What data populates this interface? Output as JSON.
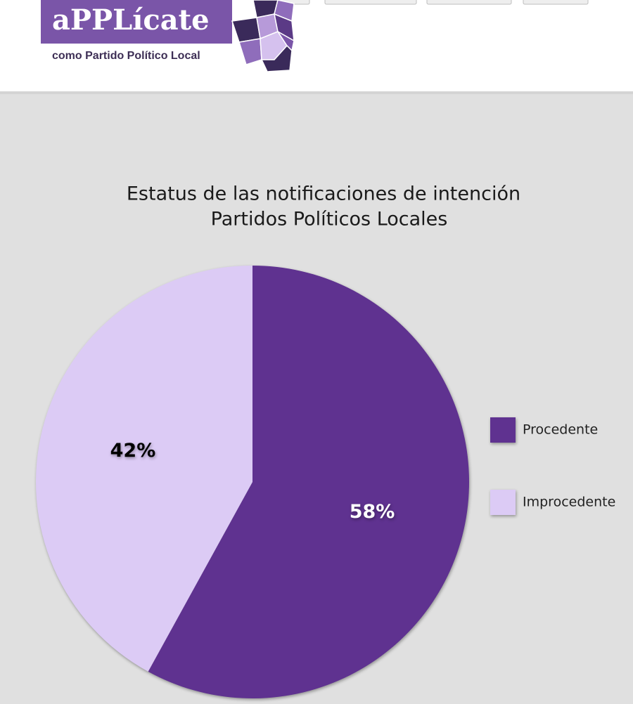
{
  "header": {
    "logo": "aPPLícate",
    "tagline": "como Partido Político Local"
  },
  "chart_data": {
    "type": "pie",
    "title": [
      "Estatus de las notificaciones de intención",
      "Partidos Políticos Locales"
    ],
    "categories": [
      "Procedente",
      "Improcedente"
    ],
    "values": [
      58,
      42
    ],
    "value_labels": [
      "58%",
      "42%"
    ],
    "colors": [
      "#5f3290",
      "#dccbf5"
    ],
    "legend": "right"
  }
}
